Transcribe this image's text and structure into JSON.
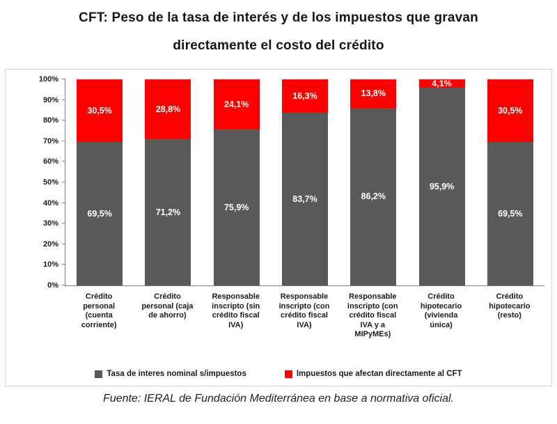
{
  "title": {
    "line1": "CFT: Peso de la tasa de interés y de los impuestos que gravan",
    "line2": "directamente el costo del crédito"
  },
  "source": "Fuente: IERAL de Fundación Mediterránea en base a normativa oficial.",
  "chart_data": {
    "type": "bar",
    "stacked": true,
    "percent_stacked": true,
    "title": "CFT: Peso de la tasa de interés y de los impuestos que gravan directamente el costo del crédito",
    "xlabel": "",
    "ylabel": "",
    "ylim": [
      0,
      100
    ],
    "yticks": [
      "0%",
      "10%",
      "20%",
      "30%",
      "40%",
      "50%",
      "60%",
      "70%",
      "80%",
      "90%",
      "100%"
    ],
    "grid": false,
    "legend_position": "bottom",
    "categories": [
      "Crédito personal (cuenta corriente)",
      "Crédito personal (caja de ahorro)",
      "Responsable inscripto (sin crédito fiscal IVA)",
      "Responsable inscripto (con crédito fiscal IVA)",
      "Responsable inscripto (con crédito fiscal IVA y a MIPyMEs)",
      "Crédito hipotecario (vivienda única)",
      "Crédito hipotecario (resto)"
    ],
    "category_lines": [
      [
        "Crédito",
        "personal",
        "(cuenta",
        "corriente)"
      ],
      [
        "Crédito",
        "personal (caja",
        "de ahorro)"
      ],
      [
        "Responsable",
        "inscripto (sin",
        "crédito fiscal",
        "IVA)"
      ],
      [
        "Responsable",
        "inscripto (con",
        "crédito fiscal",
        "IVA)"
      ],
      [
        "Responsable",
        "inscripto (con",
        "crédito fiscal",
        "IVA y a",
        "MIPyMEs)"
      ],
      [
        "Crédito",
        "hipotecario",
        "(vivienda",
        "única)"
      ],
      [
        "Crédito",
        "hipotecario",
        "(resto)"
      ]
    ],
    "series": [
      {
        "name": "Tasa de interes nominal s/impuestos",
        "color": "#595959",
        "values": [
          69.5,
          71.2,
          75.9,
          83.7,
          86.2,
          95.9,
          69.5
        ],
        "labels": [
          "69,5%",
          "71,2%",
          "75,9%",
          "83,7%",
          "86,2%",
          "95,9%",
          "69,5%"
        ]
      },
      {
        "name": "Impuestos que afectan directamente al CFT",
        "color": "#ff0000",
        "values": [
          30.5,
          28.8,
          24.1,
          16.3,
          13.8,
          4.1,
          30.5
        ],
        "labels": [
          "30,5%",
          "28,8%",
          "24,1%",
          "16,3%",
          "13,8%",
          "4,1%",
          "30,5%"
        ]
      }
    ]
  }
}
